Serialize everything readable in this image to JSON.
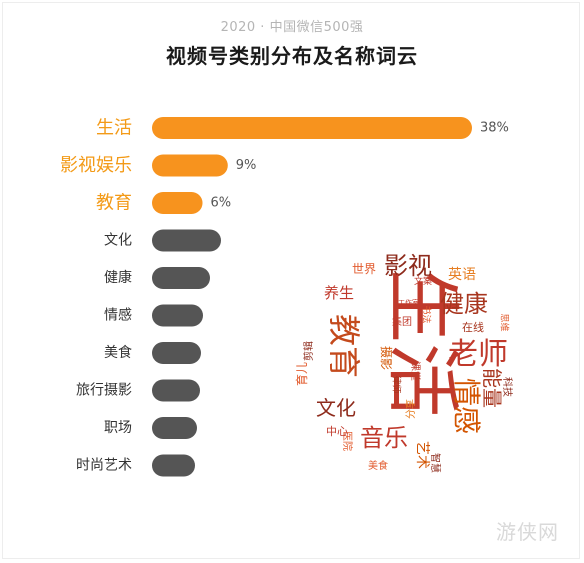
{
  "header": {
    "subtitle": "2020 · 中国微信500强",
    "title": "视频号类别分布及名称词云"
  },
  "chart_data": {
    "type": "bar",
    "orientation": "horizontal",
    "categories": [
      "生活",
      "影视娱乐",
      "教育",
      "文化",
      "健康",
      "情感",
      "美食",
      "旅行摄影",
      "职场",
      "时尚艺术"
    ],
    "values": [
      38,
      9,
      6,
      null,
      null,
      null,
      null,
      null,
      null,
      null
    ],
    "value_labels": [
      "38%",
      "9%",
      "6%",
      "",
      "",
      "",
      "",
      "",
      "",
      ""
    ],
    "highlighted": [
      true,
      true,
      true,
      false,
      false,
      false,
      false,
      false,
      false,
      false
    ],
    "colors": {
      "highlight": "#f7931e",
      "other": "#555555",
      "highlight_label": "#f39a17"
    }
  },
  "word_cloud": {
    "words": [
      "生活",
      "教育",
      "老师",
      "健康",
      "影视",
      "情感",
      "音乐",
      "文化",
      "能量",
      "养生",
      "英语",
      "世界",
      "文案",
      "育儿",
      "剪辑",
      "摄影",
      "集团",
      "在线",
      "思维",
      "科技",
      "课堂",
      "分享",
      "艺术",
      "医院",
      "中心",
      "美食",
      "智慧",
      "律师",
      "书法",
      "工作室"
    ],
    "colors": [
      "#c0392b",
      "#e25b2e",
      "#a8361f",
      "#e67e22",
      "#8e2b1c",
      "#d35400"
    ]
  },
  "watermark": {
    "text": "游侠网"
  }
}
